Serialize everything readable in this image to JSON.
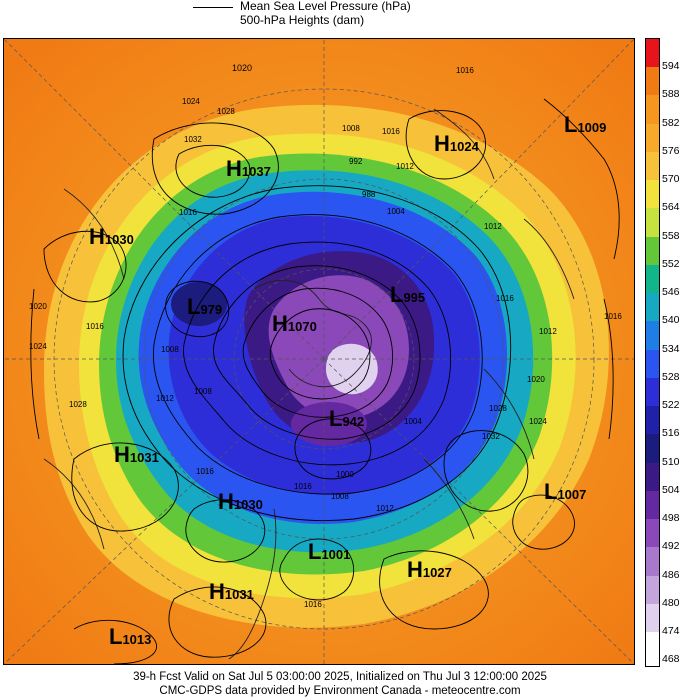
{
  "legend": {
    "line1": "Mean Sea Level Pressure (hPa)",
    "line2": "500-hPa Heights (dam)"
  },
  "colorbar": {
    "labels": [
      "594",
      "588",
      "582",
      "576",
      "570",
      "564",
      "558",
      "552",
      "546",
      "540",
      "534",
      "528",
      "522",
      "516",
      "510",
      "504",
      "498",
      "492",
      "486",
      "480",
      "474",
      "468"
    ],
    "colors": [
      "#e8141c",
      "#f07a14",
      "#f5961e",
      "#f7aa2a",
      "#f7c23a",
      "#f2e23c",
      "#c6e23e",
      "#62c83a",
      "#12b48a",
      "#17a8c4",
      "#1f7ee6",
      "#2a55f0",
      "#2e2ed8",
      "#2020a8",
      "#1c1c7e",
      "#3c1a86",
      "#6428a0",
      "#8a48b8",
      "#a878cc",
      "#c4a4dc",
      "#e0d2ee",
      "#ffffff"
    ]
  },
  "systems": [
    {
      "id": "h1037",
      "type": "H",
      "value": "1037"
    },
    {
      "id": "h1030",
      "type": "H",
      "value": "1030"
    },
    {
      "id": "h1024",
      "type": "H",
      "value": "1024"
    },
    {
      "id": "l1009",
      "type": "L",
      "value": "1009"
    },
    {
      "id": "l995",
      "type": "L",
      "value": "995"
    },
    {
      "id": "l979",
      "type": "L",
      "value": "979"
    },
    {
      "id": "h1070",
      "type": "H",
      "value": "1070"
    },
    {
      "id": "l942",
      "type": "L",
      "value": "942"
    },
    {
      "id": "h1031a",
      "type": "H",
      "value": "1031"
    },
    {
      "id": "h1030b",
      "type": "H",
      "value": "1030"
    },
    {
      "id": "l1001",
      "type": "L",
      "value": "1001"
    },
    {
      "id": "h1027",
      "type": "H",
      "value": "1027"
    },
    {
      "id": "l1007",
      "type": "L",
      "value": "1007"
    },
    {
      "id": "h1031b",
      "type": "H",
      "value": "1031"
    },
    {
      "id": "l1013",
      "type": "L",
      "value": "1013"
    }
  ],
  "isobars": [
    "1020",
    "1024",
    "1028",
    "1032",
    "1016",
    "1008",
    "1016",
    "1012",
    "1004",
    "992",
    "988",
    "1016",
    "1012",
    "1016",
    "1028",
    "1032",
    "1024",
    "1012",
    "1016",
    "1020",
    "1004",
    "1012",
    "1008",
    "1000",
    "1016",
    "1012",
    "1016",
    "1008",
    "1016",
    "1008",
    "1024",
    "1028",
    "1016",
    "1020"
  ],
  "footer": {
    "line1": "39-h Fcst Valid on Sat Jul  5 03:00:00 2025, Initialized on Thu Jul  3 12:00:00 2025",
    "line2": "CMC-GDPS data provided by Environment Canada - meteocentre.com"
  }
}
